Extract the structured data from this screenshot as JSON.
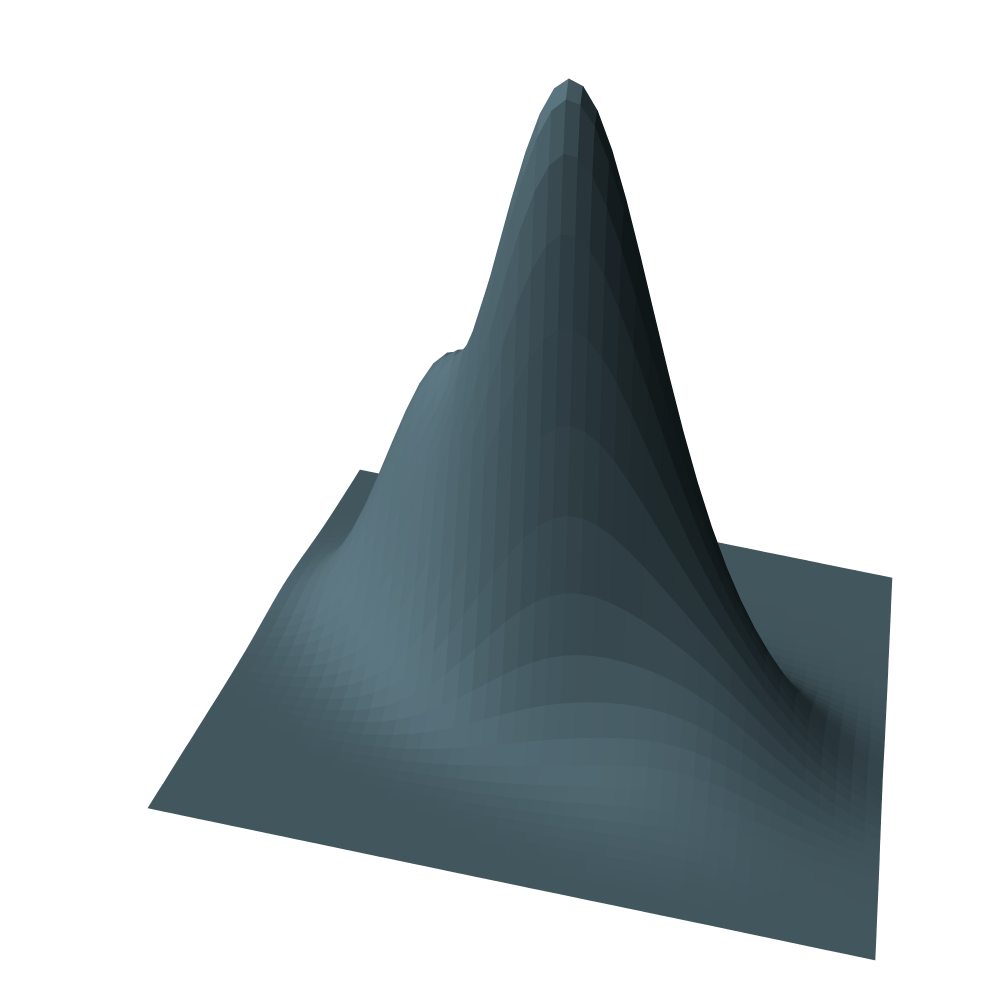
{
  "chart_data": {
    "type": "surface",
    "title": "",
    "xlabel": "",
    "ylabel": "",
    "zlabel": "",
    "grid": false,
    "legend": "none",
    "axes_visible": false,
    "surface_color": "#5e7984",
    "shade_dark_color": "#0f1618",
    "background_color": "#ffffff",
    "x_range": [
      -3,
      3
    ],
    "y_range": [
      -3,
      3
    ],
    "z_range": [
      0,
      1
    ],
    "peaks": [
      {
        "x": 0.0,
        "y": 0.0,
        "height": 1.0,
        "spread_x": 0.75,
        "spread_y": 0.55
      },
      {
        "x": -1.4,
        "y": 0.9,
        "height": 0.42,
        "spread_x": 0.6,
        "spread_y": 0.6
      },
      {
        "x": 1.3,
        "y": -0.5,
        "height": 0.2,
        "spread_x": 0.8,
        "spread_y": 0.7
      }
    ]
  }
}
